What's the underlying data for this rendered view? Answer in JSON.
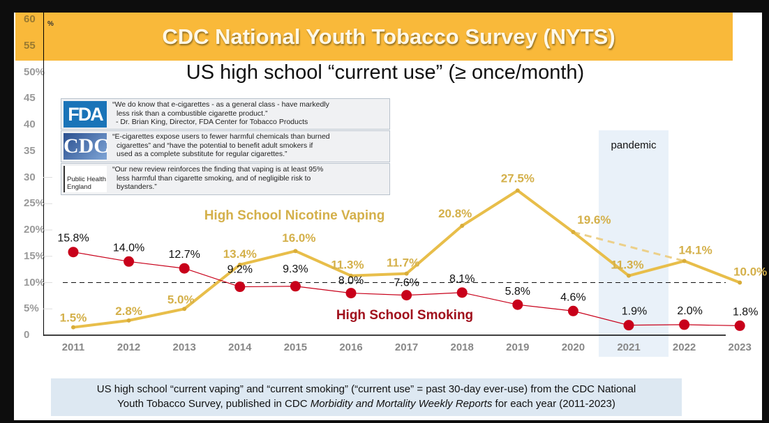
{
  "header": {
    "title": "CDC National Youth Tobacco Survey (NYTS)",
    "subtitle": "US high school “current use” (≥ once/month)"
  },
  "quotes": [
    {
      "logo": "FDA",
      "text": [
        "“We do know that e-cigarettes - as a general class - have markedly",
        "less risk than a combustible cigarette product.”",
        "- Dr. Brian King, Director, FDA Center for Tobacco Products"
      ]
    },
    {
      "logo": "CDC",
      "text": [
        "“E-cigarettes expose users to fewer harmful chemicals than burned",
        "cigarettes” and “have the potential to benefit adult smokers if",
        "used as a complete substitute for regular cigarettes.”"
      ]
    },
    {
      "logo": "Public Health England",
      "text": [
        "“Our new review reinforces the finding that vaping is at least 95%",
        "less harmful than cigarette smoking, and of negligible risk to",
        "bystanders.”"
      ]
    }
  ],
  "annotation": {
    "pandemic": "pandemic",
    "pandemic_years": [
      2021
    ]
  },
  "caption": {
    "line1": "US high school “current vaping” and “current smoking” (“current use” = past 30-day ever-use) from the CDC National",
    "line2_pre": "Youth Tobacco Survey, published in CDC ",
    "line2_italic": "Morbidity and Mortality Weekly Reports",
    "line2_post": " for each year (2011-2023)"
  },
  "colors": {
    "vaping": "#e8be4a",
    "vaping_label": "#d4b04a",
    "smoking": "#c8001a",
    "smoking_label": "#a0101c",
    "banner": "#f9b93a"
  },
  "chart_data": {
    "type": "line",
    "x": [
      2011,
      2012,
      2013,
      2014,
      2015,
      2016,
      2017,
      2018,
      2019,
      2020,
      2021,
      2022,
      2023
    ],
    "y_tick_labels": [
      "0",
      "5%",
      "10%",
      "15%",
      "20%",
      "25%",
      "30",
      "35",
      "40",
      "45",
      "50%",
      "55",
      "60"
    ],
    "y_ticks": [
      0,
      5,
      10,
      15,
      20,
      25,
      30,
      35,
      40,
      45,
      50,
      55,
      60
    ],
    "y_unit": "%",
    "ylim": [
      0,
      60
    ],
    "reference_line": 10,
    "series": [
      {
        "name": "High School Nicotine Vaping",
        "values": [
          1.5,
          2.8,
          5.0,
          13.4,
          16.0,
          11.3,
          11.7,
          20.8,
          27.5,
          19.6,
          11.3,
          14.1,
          10.0
        ],
        "labels": [
          "1.5%",
          "2.8%",
          "5.0%",
          "13.4%",
          "16.0%",
          "11.3%",
          "11.7%",
          "20.8%",
          "27.5%",
          "19.6%",
          "11.3%",
          "14.1%",
          "10.0%"
        ],
        "dashed_segment": [
          2020,
          2022
        ]
      },
      {
        "name": "High School Smoking",
        "values": [
          15.8,
          14.0,
          12.7,
          9.2,
          9.3,
          8.0,
          7.6,
          8.1,
          5.8,
          4.6,
          1.9,
          2.0,
          1.8
        ],
        "labels": [
          "15.8%",
          "14.0%",
          "12.7%",
          "9.2%",
          "9.3%",
          "8.0%",
          "7.6%",
          "8.1%",
          "5.8%",
          "4.6%",
          "1.9%",
          "2.0%",
          "1.8%"
        ]
      }
    ]
  }
}
